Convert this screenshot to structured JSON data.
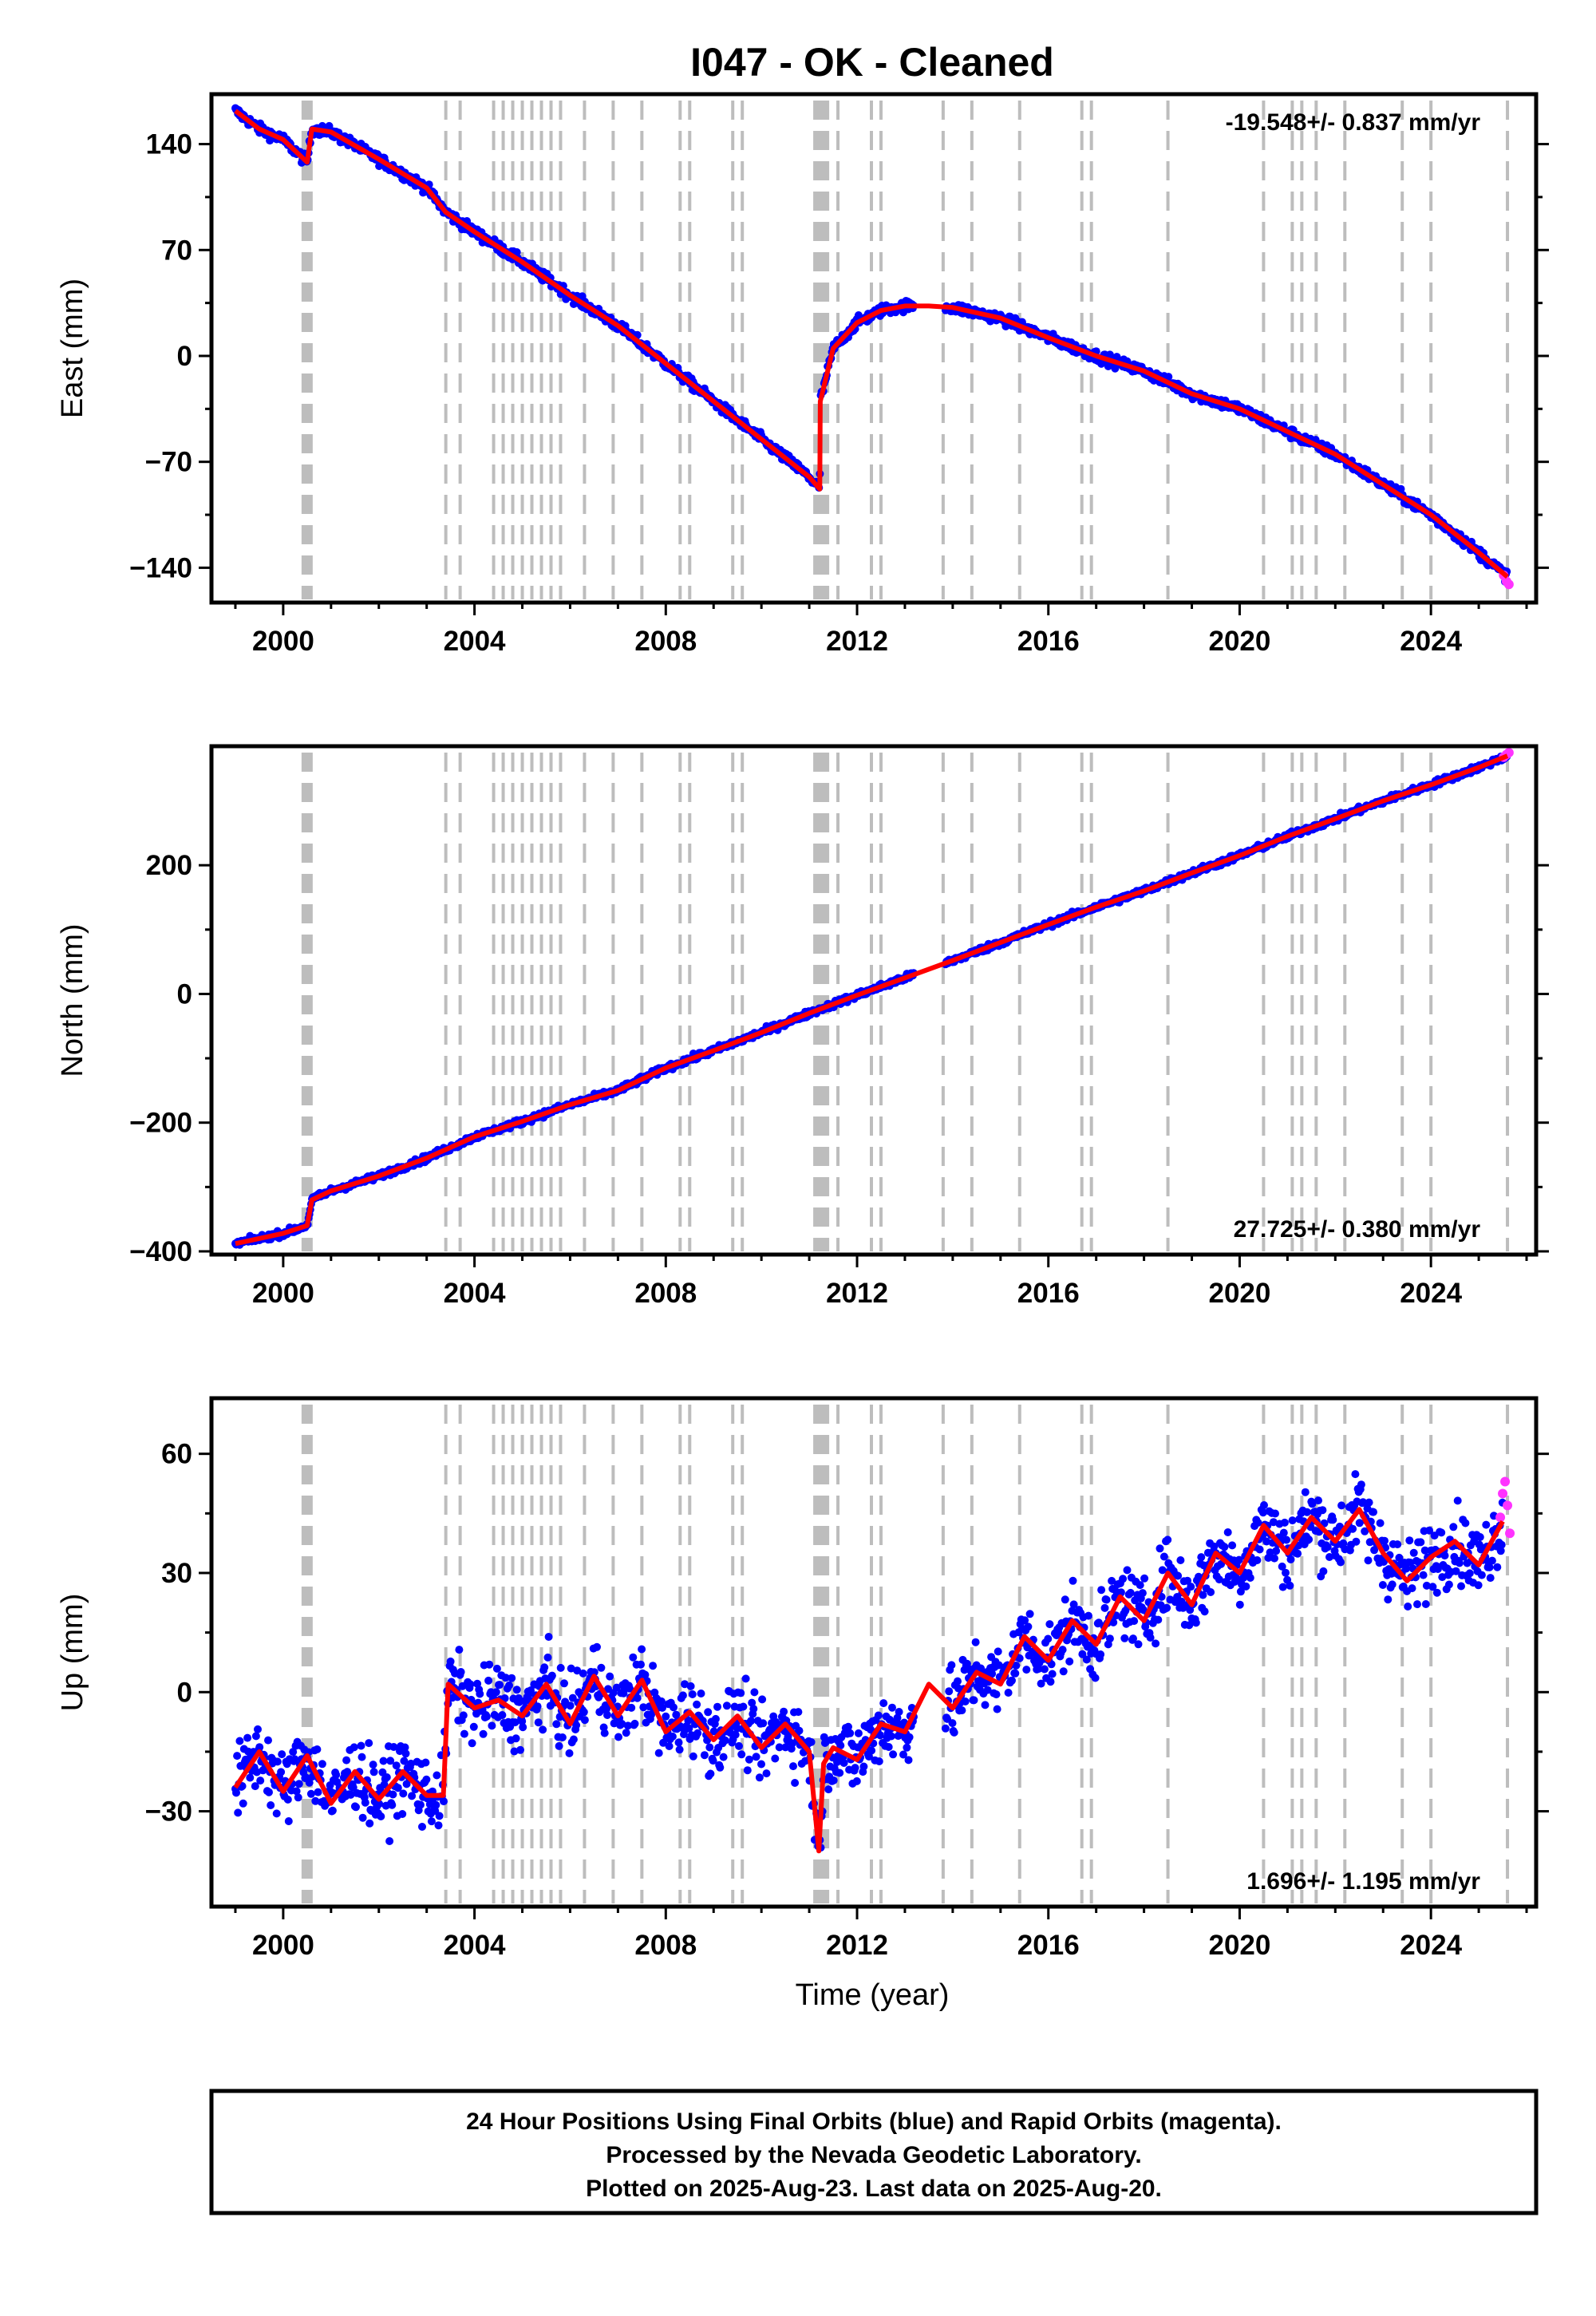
{
  "title": "I047  - OK - Cleaned",
  "colors": {
    "final_orbits": "#0000ff",
    "rapid_orbits": "#ff33ff",
    "model": "#ff0000",
    "event_lines": "#bdbdbd"
  },
  "xlabel": "Time (year)",
  "footer": {
    "line1": "24 Hour Positions Using Final Orbits (blue) and Rapid Orbits (magenta).",
    "line2": "Processed by the Nevada Geodetic Laboratory.",
    "line3": "Plotted on 2025-Aug-23. Last data on 2025-Aug-20."
  },
  "chart_data": [
    {
      "type": "scatter",
      "component": "East",
      "ylabel": "East (mm)",
      "rate_label": "-19.548+/- 0.837 mm/yr",
      "rate_position": "top-right",
      "xlim": [
        1998.5,
        2026.2
      ],
      "ylim": [
        -163,
        173
      ],
      "xticks": [
        2000,
        2004,
        2008,
        2012,
        2016,
        2020,
        2024
      ],
      "yticks": [
        140,
        70,
        0,
        -70,
        -140
      ],
      "ytick_labels": [
        "140",
        "70",
        "0",
        "−70",
        "−140"
      ],
      "event_lines": [
        2000.5,
        2003.4,
        2003.7,
        2004.4,
        2004.6,
        2004.8,
        2005.0,
        2005.2,
        2005.4,
        2005.6,
        2005.8,
        2006.3,
        2006.9,
        2007.5,
        2008.3,
        2008.5,
        2009.4,
        2009.6,
        2011.2,
        2011.3,
        2011.6,
        2012.3,
        2012.5,
        2013.8,
        2014.4,
        2015.4,
        2016.7,
        2016.9,
        2018.5,
        2020.5,
        2021.1,
        2021.3,
        2021.6,
        2022.2,
        2023.4,
        2024.0,
        2025.6
      ],
      "trend": {
        "x": [
          1999.0,
          1999.5,
          2000.0,
          2000.5,
          2000.6,
          2001.0,
          2002.0,
          2003.0,
          2003.4,
          2004.0,
          2005.0,
          2006.0,
          2007.0,
          2008.0,
          2009.0,
          2010.0,
          2011.0,
          2011.22,
          2011.23,
          2011.5,
          2012.0,
          2012.5,
          2013.0,
          2013.5,
          2014.0,
          2015.0,
          2016.0,
          2017.0,
          2018.0,
          2019.0,
          2020.0,
          2021.0,
          2022.0,
          2023.0,
          2024.0,
          2025.0,
          2025.6
        ],
        "y": [
          162,
          150,
          143,
          128,
          150,
          148,
          130,
          111,
          95,
          82,
          62,
          40,
          20,
          -5,
          -30,
          -55,
          -80,
          -88,
          -30,
          5,
          22,
          30,
          33,
          33,
          32,
          25,
          12,
          0,
          -10,
          -25,
          -35,
          -50,
          -65,
          -85,
          -105,
          -130,
          -146
        ]
      },
      "rapid_points": {
        "x": [
          2025.52,
          2025.58,
          2025.63
        ],
        "y": [
          -145,
          -149,
          -151
        ]
      }
    },
    {
      "type": "scatter",
      "component": "North",
      "ylabel": "North (mm)",
      "rate_label": "27.725+/- 0.380 mm/yr",
      "rate_position": "bottom-right",
      "xlim": [
        1998.5,
        2026.2
      ],
      "ylim": [
        -405,
        385
      ],
      "xticks": [
        2000,
        2004,
        2008,
        2012,
        2016,
        2020,
        2024
      ],
      "yticks": [
        200,
        0,
        -200,
        -400
      ],
      "ytick_labels": [
        "200",
        "0",
        "−200",
        "−400"
      ],
      "event_lines": [
        2000.5,
        2003.4,
        2003.7,
        2004.4,
        2004.6,
        2004.8,
        2005.0,
        2005.2,
        2005.4,
        2005.6,
        2005.8,
        2006.3,
        2006.9,
        2007.5,
        2008.3,
        2008.5,
        2009.4,
        2009.6,
        2011.2,
        2011.3,
        2011.6,
        2012.3,
        2012.5,
        2013.8,
        2014.4,
        2015.4,
        2016.7,
        2016.9,
        2018.5,
        2020.5,
        2021.1,
        2021.3,
        2021.6,
        2022.2,
        2023.4,
        2024.0,
        2025.6
      ],
      "trend": {
        "x": [
          1999.0,
          2000.0,
          2000.5,
          2000.6,
          2001.0,
          2002.0,
          2003.0,
          2004.0,
          2005.0,
          2006.0,
          2007.0,
          2008.0,
          2009.0,
          2010.0,
          2011.0,
          2012.0,
          2013.0,
          2014.0,
          2015.0,
          2016.0,
          2017.0,
          2018.0,
          2019.0,
          2020.0,
          2021.0,
          2022.0,
          2023.0,
          2024.0,
          2025.0,
          2025.6
        ],
        "y": [
          -388,
          -372,
          -360,
          -320,
          -306,
          -283,
          -255,
          -222,
          -198,
          -172,
          -150,
          -115,
          -88,
          -60,
          -30,
          -2,
          25,
          52,
          80,
          108,
          135,
          160,
          188,
          215,
          245,
          272,
          300,
          325,
          352,
          370
        ]
      },
      "rapid_points": {
        "x": [
          2025.52,
          2025.58,
          2025.63
        ],
        "y": [
          368,
          372,
          375
        ]
      }
    },
    {
      "type": "scatter",
      "component": "Up",
      "ylabel": "Up (mm)",
      "rate_label": "1.696+/- 1.195 mm/yr",
      "rate_position": "bottom-right",
      "xlim": [
        1998.5,
        2026.2
      ],
      "ylim": [
        -54,
        74
      ],
      "xticks": [
        2000,
        2004,
        2008,
        2012,
        2016,
        2020,
        2024
      ],
      "yticks": [
        60,
        30,
        0,
        -30
      ],
      "ytick_labels": [
        "60",
        "30",
        "0",
        "−30"
      ],
      "event_lines": [
        2000.5,
        2003.4,
        2003.7,
        2004.4,
        2004.6,
        2004.8,
        2005.0,
        2005.2,
        2005.4,
        2005.6,
        2005.8,
        2006.3,
        2006.9,
        2007.5,
        2008.3,
        2008.5,
        2009.4,
        2009.6,
        2011.2,
        2011.3,
        2011.6,
        2012.3,
        2012.5,
        2013.8,
        2014.4,
        2015.4,
        2016.7,
        2016.9,
        2018.5,
        2020.5,
        2021.1,
        2021.3,
        2021.6,
        2022.2,
        2023.4,
        2024.0,
        2025.6
      ],
      "trend": {
        "x": [
          1999.0,
          1999.5,
          2000.0,
          2000.5,
          2001.0,
          2001.5,
          2002.0,
          2002.5,
          2003.0,
          2003.35,
          2003.45,
          2004.0,
          2004.5,
          2005.0,
          2005.5,
          2006.0,
          2006.5,
          2007.0,
          2007.5,
          2008.0,
          2008.5,
          2009.0,
          2009.5,
          2010.0,
          2010.5,
          2011.0,
          2011.2,
          2011.3,
          2011.5,
          2012.0,
          2012.5,
          2013.0,
          2013.5,
          2014.0,
          2014.5,
          2015.0,
          2015.5,
          2016.0,
          2016.5,
          2017.0,
          2017.5,
          2018.0,
          2018.5,
          2019.0,
          2019.5,
          2020.0,
          2020.5,
          2021.0,
          2021.5,
          2022.0,
          2022.5,
          2023.0,
          2023.5,
          2024.0,
          2024.5,
          2025.0,
          2025.5
        ],
        "y": [
          -24,
          -15,
          -25,
          -16,
          -28,
          -20,
          -27,
          -20,
          -26,
          -26,
          2,
          -4,
          -2,
          -6,
          2,
          -8,
          4,
          -6,
          3,
          -10,
          -5,
          -12,
          -6,
          -14,
          -8,
          -15,
          -40,
          -18,
          -14,
          -17,
          -8,
          -10,
          2,
          -4,
          5,
          2,
          14,
          8,
          18,
          12,
          24,
          18,
          30,
          22,
          35,
          30,
          42,
          35,
          44,
          38,
          46,
          35,
          28,
          34,
          38,
          32,
          43
        ]
      },
      "rapid_points": {
        "x": [
          2025.45,
          2025.5,
          2025.55,
          2025.6,
          2025.65
        ],
        "y": [
          44,
          50,
          53,
          47,
          40
        ]
      }
    }
  ]
}
